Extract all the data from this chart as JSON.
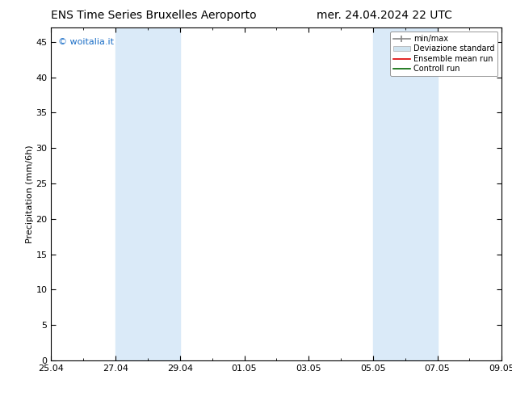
{
  "title_left": "ENS Time Series Bruxelles Aeroporto",
  "title_right": "mer. 24.04.2024 22 UTC",
  "ylabel": "Precipitation (mm/6h)",
  "ylim": [
    0,
    47
  ],
  "yticks": [
    0,
    5,
    10,
    15,
    20,
    25,
    30,
    35,
    40,
    45
  ],
  "xlabel_ticks": [
    "25.04",
    "27.04",
    "29.04",
    "01.05",
    "03.05",
    "05.05",
    "07.05",
    "09.05"
  ],
  "xmin": 0,
  "xmax": 336,
  "shade_bands": [
    {
      "xstart": 48,
      "xend": 96
    },
    {
      "xstart": 240,
      "xend": 288
    }
  ],
  "shade_color": "#daeaf8",
  "background_color": "#ffffff",
  "watermark_text": "© woitalia.it",
  "watermark_color": "#1a6ec7",
  "legend_entries": [
    {
      "label": "min/max"
    },
    {
      "label": "Deviazione standard"
    },
    {
      "label": "Ensemble mean run"
    },
    {
      "label": "Controll run"
    }
  ],
  "tick_label_positions_hours": [
    0,
    48,
    96,
    144,
    192,
    240,
    288,
    336
  ],
  "title_fontsize": 10,
  "axis_fontsize": 8,
  "ylabel_fontsize": 8
}
